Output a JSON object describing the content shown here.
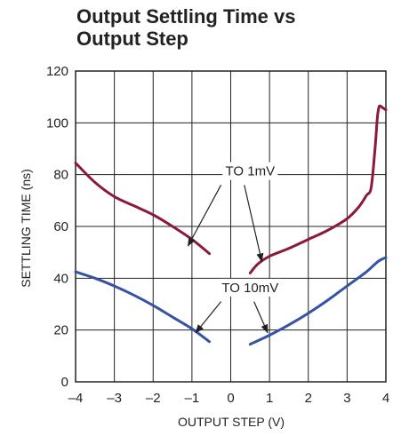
{
  "chart_data": {
    "type": "line",
    "title_lines": [
      "Output Settling Time vs",
      "Output Step"
    ],
    "xlabel": "OUTPUT STEP (V)",
    "ylabel": "SETTLING TIME (ns)",
    "xlim": [
      -4,
      4
    ],
    "ylim": [
      0,
      120
    ],
    "xticks": [
      "–4",
      "–3",
      "–2",
      "–1",
      "0",
      "1",
      "2",
      "3",
      "4"
    ],
    "yticks": [
      "0",
      "20",
      "40",
      "60",
      "80",
      "100",
      "120"
    ],
    "grid": true,
    "colors": {
      "to_1mv": "#8b1a3a",
      "to_10mv": "#3553a3",
      "grid": "#222222"
    },
    "series": [
      {
        "key": "1mv_neg",
        "group": "to_1mv",
        "x": [
          -4,
          -3.5,
          -3,
          -2.5,
          -2,
          -1.5,
          -1,
          -0.55
        ],
        "y": [
          84.5,
          77,
          71.5,
          68,
          64.5,
          60,
          55,
          49.5
        ]
      },
      {
        "key": "1mv_pos",
        "group": "to_1mv",
        "x": [
          0.5,
          0.7,
          1,
          1.5,
          2,
          2.5,
          3,
          3.3,
          3.5,
          3.62,
          3.72,
          3.78,
          3.82,
          3.86,
          3.9,
          3.95,
          4
        ],
        "y": [
          42,
          45.5,
          48.5,
          51.5,
          55,
          58.5,
          63,
          67.5,
          72,
          75,
          90,
          102,
          106,
          106.5,
          106,
          105.5,
          105
        ]
      },
      {
        "key": "10mv_neg",
        "group": "to_10mv",
        "x": [
          -4,
          -3.5,
          -3,
          -2.5,
          -2,
          -1.5,
          -1,
          -0.55
        ],
        "y": [
          42.5,
          40,
          37,
          33.5,
          29.5,
          25,
          20.5,
          15.5
        ]
      },
      {
        "key": "10mv_pos",
        "group": "to_10mv",
        "x": [
          0.5,
          1,
          1.5,
          2,
          2.5,
          3,
          3.5,
          3.8,
          4
        ],
        "y": [
          14.5,
          18,
          22,
          26.5,
          31.5,
          37,
          42.5,
          46.5,
          48
        ]
      }
    ],
    "annotations": [
      {
        "key": "to1mv",
        "text": "TO 1mV",
        "x": 0.5,
        "y": 80,
        "arrows": [
          {
            "from": [
              -0.25,
              76
            ],
            "to": [
              -1.1,
              52.5
            ]
          },
          {
            "from": [
              0.35,
              76
            ],
            "to": [
              0.8,
              46.5
            ]
          }
        ]
      },
      {
        "key": "to10mv",
        "text": "TO 10mV",
        "x": 0.5,
        "y": 35,
        "arrows": [
          {
            "from": [
              -0.25,
              31
            ],
            "to": [
              -0.9,
              19
            ]
          },
          {
            "from": [
              0.6,
              31
            ],
            "to": [
              0.95,
              19
            ]
          }
        ]
      }
    ]
  }
}
